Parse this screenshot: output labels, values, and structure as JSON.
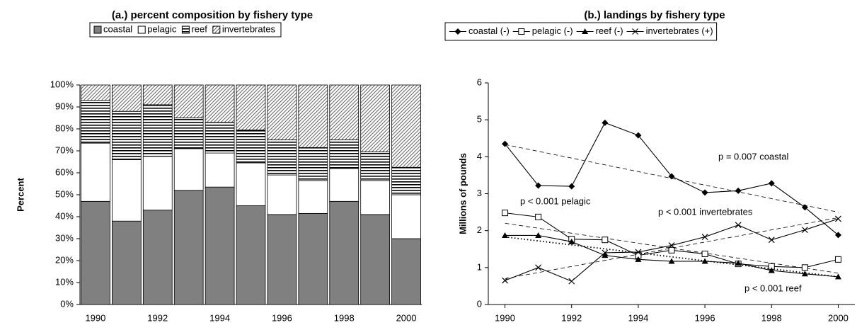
{
  "chart_data": [
    {
      "type": "bar",
      "title": "(a.)  percent composition by fishery type",
      "y_label": "Percent",
      "stacked": true,
      "categories": [
        "1990",
        null,
        "1992",
        null,
        "1994",
        null,
        "1996",
        null,
        "1998",
        null,
        "2000"
      ],
      "series": [
        {
          "name": "coastal",
          "color": "#808080",
          "pattern": "solid",
          "values": [
            47,
            38,
            43,
            52,
            53.5,
            45,
            41,
            41.5,
            47,
            41,
            30
          ]
        },
        {
          "name": "pelagic",
          "color": "#ffffff",
          "pattern": "solid",
          "values": [
            26.5,
            28,
            24.5,
            19,
            15.5,
            19.5,
            18,
            15,
            15,
            15.5,
            20
          ]
        },
        {
          "name": "reef",
          "color": "#ffffff",
          "pattern": "horizontal",
          "values": [
            19.5,
            22,
            23.5,
            14,
            14,
            15,
            16,
            15,
            13,
            13,
            12.5
          ]
        },
        {
          "name": "invertebrates",
          "color": "#ffffff",
          "pattern": "diagonal",
          "values": [
            7,
            12,
            9,
            15,
            17,
            20.5,
            25,
            28.5,
            25,
            30.5,
            37.5
          ]
        }
      ],
      "ylim": [
        0,
        100
      ],
      "yticks": [
        {
          "value": 0,
          "label": "0%"
        },
        {
          "value": 10,
          "label": "10%"
        },
        {
          "value": 20,
          "label": "20%"
        },
        {
          "value": 30,
          "label": "30%"
        },
        {
          "value": 40,
          "label": "40%"
        },
        {
          "value": 50,
          "label": "50%"
        },
        {
          "value": 60,
          "label": "60%"
        },
        {
          "value": 70,
          "label": "70%"
        },
        {
          "value": 80,
          "label": "80%"
        },
        {
          "value": 90,
          "label": "90%"
        },
        {
          "value": 100,
          "label": "100%"
        }
      ],
      "grid": false,
      "legend": "top"
    },
    {
      "type": "line",
      "title": "(b.) landings by fishery type",
      "y_label": "Millions of pounds",
      "x": [
        1990,
        1991,
        1992,
        1993,
        1994,
        1995,
        1996,
        1997,
        1998,
        1999,
        2000
      ],
      "series": [
        {
          "name": "coastal (-)",
          "color": "#000000",
          "marker": "diamond",
          "values": [
            4.35,
            3.22,
            3.2,
            4.92,
            4.58,
            3.47,
            3.03,
            3.08,
            3.28,
            2.63,
            1.88
          ],
          "trend": [
            4.33,
            2.5
          ],
          "trend_style": "dashed"
        },
        {
          "name": "pelagic (-)",
          "color": "#000000",
          "marker": "square",
          "values": [
            2.48,
            2.37,
            1.77,
            1.75,
            1.33,
            1.47,
            1.37,
            1.1,
            1.03,
            1.0,
            1.22
          ],
          "trend": [
            2.2,
            0.85
          ],
          "trend_style": "dashed"
        },
        {
          "name": "reef (-)",
          "color": "#000000",
          "marker": "triangle",
          "values": [
            1.87,
            1.87,
            1.7,
            1.33,
            1.22,
            1.17,
            1.17,
            1.12,
            0.92,
            0.83,
            0.75
          ],
          "trend": [
            1.83,
            0.75
          ],
          "trend_style": "dotted"
        },
        {
          "name": "invertebrates (+)",
          "color": "#000000",
          "marker": "x",
          "values": [
            0.65,
            1.0,
            0.63,
            1.4,
            1.42,
            1.6,
            1.83,
            2.15,
            1.75,
            2.02,
            2.32
          ],
          "trend": [
            0.7,
            2.35
          ],
          "trend_style": "dashed"
        }
      ],
      "annotations": [
        "p = 0.007 coastal",
        "p < 0.001 pelagic",
        "p < 0.001 invertebrates",
        "p < 0.001 reef"
      ],
      "xlim": [
        1989.5,
        2000.5
      ],
      "xticks": [
        1990,
        1992,
        1994,
        1996,
        1998,
        2000
      ],
      "ylim": [
        0,
        6
      ],
      "yticks": [
        0,
        1,
        2,
        3,
        4,
        5,
        6
      ],
      "grid": false,
      "legend": "top"
    }
  ]
}
